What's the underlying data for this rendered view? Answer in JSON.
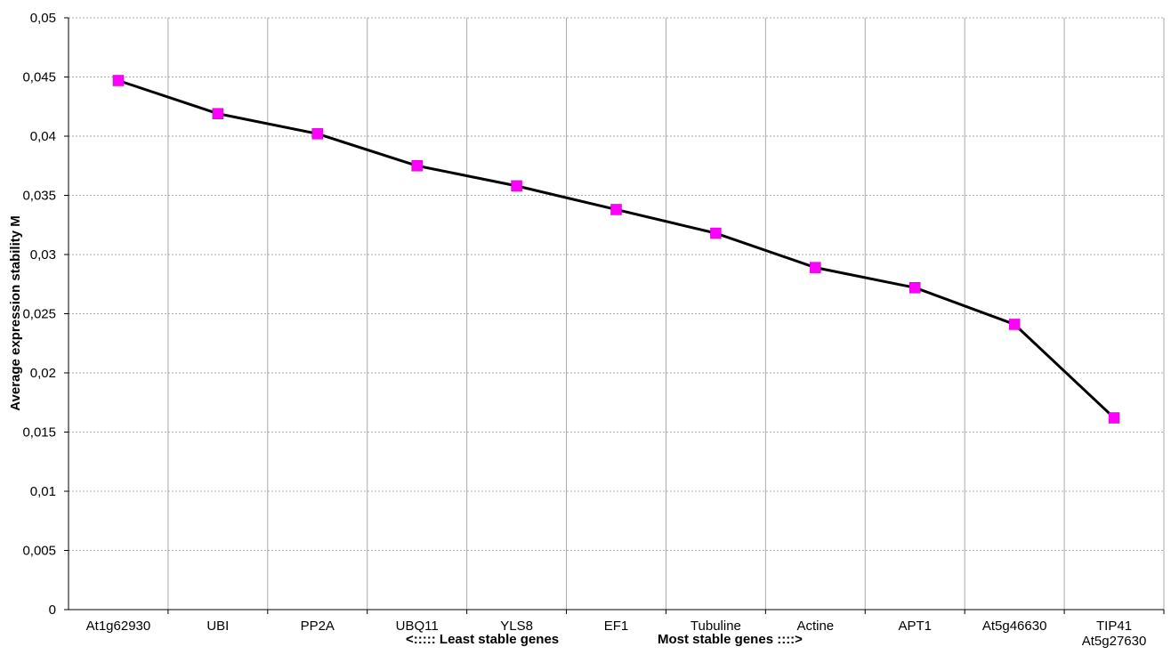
{
  "chart_data": {
    "type": "line",
    "ylabel": "Average expression stability M",
    "xlabel": [
      "<::::: Least stable genes",
      "Most stable genes ::::>"
    ],
    "categories": [
      "At1g62930",
      "UBI",
      "PP2A",
      "UBQ11",
      "YLS8",
      "EF1",
      "Tubuline",
      "Actine",
      "APT1",
      "At5g46630",
      "TIP41\nAt5g27630"
    ],
    "series": [
      {
        "color": "#ff00ff",
        "values": [
          0.0447,
          0.0419,
          0.0402,
          0.0375,
          0.0358,
          0.0338,
          0.0318,
          0.0289,
          0.0272,
          0.0241,
          0.0162
        ]
      }
    ],
    "ylim": [
      0,
      0.05
    ],
    "yticks": [
      0,
      {
        "value": 0.005,
        "label": "0,005"
      },
      {
        "value": 0.01,
        "label": "0,01"
      },
      {
        "value": 0.015,
        "label": "0,015"
      },
      {
        "value": 0.02,
        "label": "0,02"
      },
      {
        "value": 0.025,
        "label": "0,025"
      },
      {
        "value": 0.03,
        "label": "0,03"
      },
      {
        "value": 0.035,
        "label": "0,035"
      },
      {
        "value": 0.04,
        "label": "0,04"
      },
      {
        "value": 0.045,
        "label": "0,045"
      },
      {
        "value": 0.05,
        "label": "0,05"
      }
    ],
    "grid": true
  }
}
